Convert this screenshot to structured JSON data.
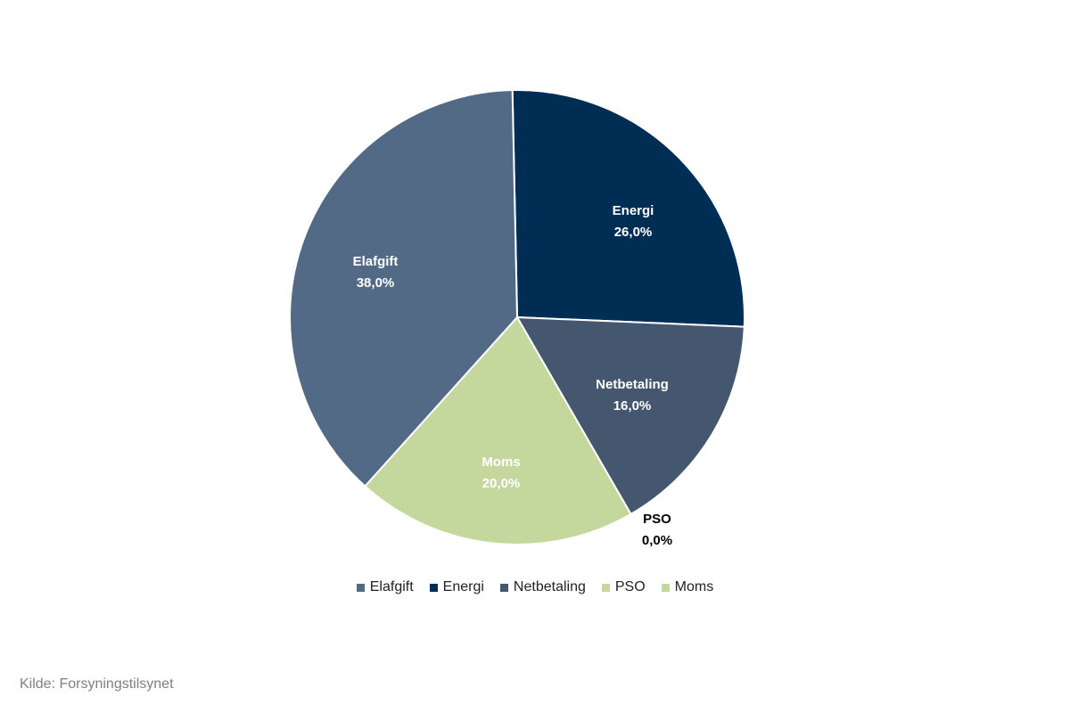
{
  "chart_data": {
    "type": "pie",
    "title": "",
    "categories": [
      "Elafgift",
      "Energi",
      "Netbetaling",
      "PSO",
      "Moms"
    ],
    "values": [
      38.0,
      26.0,
      16.0,
      0.0,
      20.0
    ],
    "value_labels": [
      "38,0%",
      "26,0%",
      "16,0%",
      "0,0%",
      "20,0%"
    ],
    "colors": [
      "#526a85",
      "#002d54",
      "#44576f",
      "#c6d8a0",
      "#c4d89e"
    ],
    "label_colors": [
      "#ffffff",
      "#ffffff",
      "#ffffff",
      "#000000",
      "#ffffff"
    ],
    "slice_order_clockwise_from_top": [
      "Energi",
      "Netbetaling",
      "PSO",
      "Moms",
      "Elafgift"
    ],
    "legend_placement": "bottom"
  },
  "legend": {
    "items": [
      {
        "label": "Elafgift",
        "color": "#526a85"
      },
      {
        "label": "Energi",
        "color": "#002d54"
      },
      {
        "label": "Netbetaling",
        "color": "#44576f"
      },
      {
        "label": "PSO",
        "color": "#c6d8a0"
      },
      {
        "label": "Moms",
        "color": "#c4d89e"
      }
    ]
  },
  "source": {
    "text": "Kilde: Forsyningstilsynet"
  }
}
